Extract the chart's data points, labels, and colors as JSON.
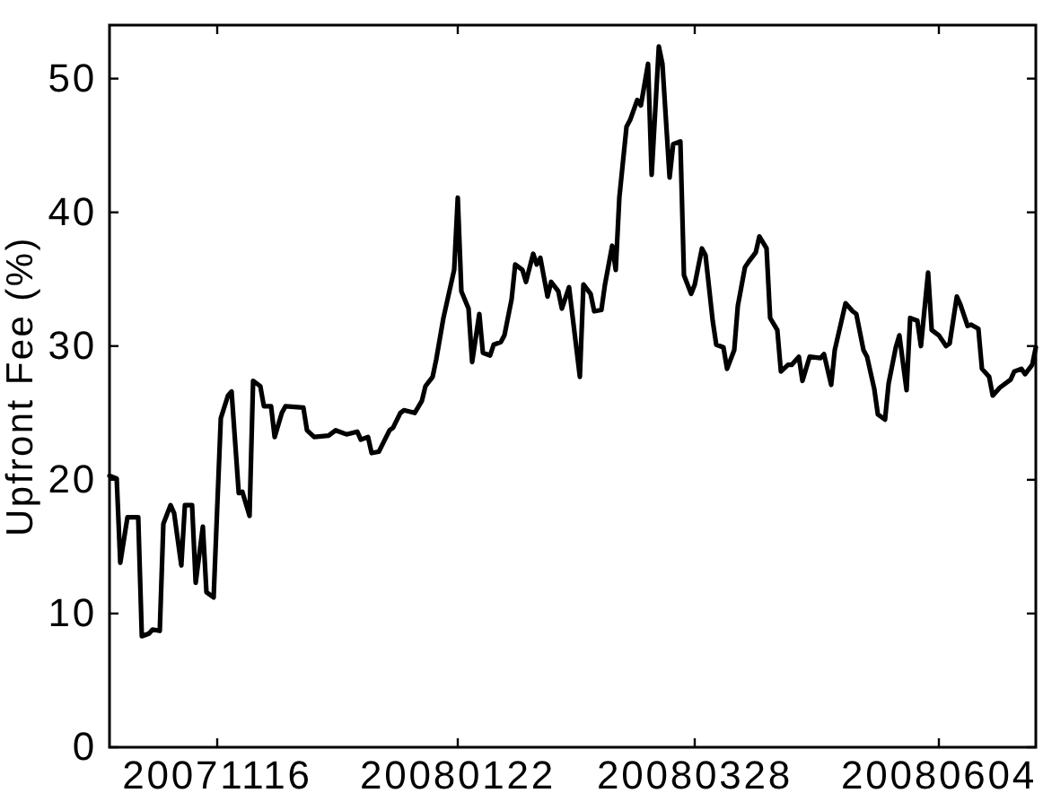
{
  "chart_data": {
    "type": "line",
    "ylabel": "Upfront Fee (%)",
    "x": [
      "2007-10-17",
      "2007-10-19",
      "2007-10-20",
      "2007-10-22",
      "2007-10-25",
      "2007-10-26",
      "2007-10-28",
      "2007-10-29",
      "2007-10-31",
      "2007-11-01",
      "2007-11-03",
      "2007-11-04",
      "2007-11-06",
      "2007-11-07",
      "2007-11-09",
      "2007-11-10",
      "2007-11-12",
      "2007-11-13",
      "2007-11-15",
      "2007-11-17",
      "2007-11-19",
      "2007-11-20",
      "2007-11-22",
      "2007-11-23",
      "2007-11-25",
      "2007-11-26",
      "2007-11-28",
      "2007-11-29",
      "2007-12-01",
      "2007-12-02",
      "2007-12-04",
      "2007-12-05",
      "2007-12-10",
      "2007-12-11",
      "2007-12-13",
      "2007-12-17",
      "2007-12-19",
      "2007-12-22",
      "2007-12-25",
      "2007-12-26",
      "2007-12-28",
      "2007-12-29",
      "2007-12-31",
      "2008-01-03",
      "2008-01-04",
      "2008-01-06",
      "2008-01-07",
      "2008-01-10",
      "2008-01-12",
      "2008-01-13",
      "2008-01-15",
      "2008-01-16",
      "2008-01-18",
      "2008-01-21",
      "2008-01-22",
      "2008-01-23",
      "2008-01-25",
      "2008-01-26",
      "2008-01-28",
      "2008-01-29",
      "2008-01-31",
      "2008-02-01",
      "2008-02-03",
      "2008-02-04",
      "2008-02-06",
      "2008-02-07",
      "2008-02-09",
      "2008-02-10",
      "2008-02-12",
      "2008-02-13",
      "2008-02-14",
      "2008-02-16",
      "2008-02-17",
      "2008-02-19",
      "2008-02-20",
      "2008-02-22",
      "2008-02-25",
      "2008-02-26",
      "2008-02-28",
      "2008-02-29",
      "2008-03-02",
      "2008-03-03",
      "2008-03-05",
      "2008-03-06",
      "2008-03-07",
      "2008-03-09",
      "2008-03-10",
      "2008-03-12",
      "2008-03-13",
      "2008-03-15",
      "2008-03-16",
      "2008-03-18",
      "2008-03-19",
      "2008-03-21",
      "2008-03-22",
      "2008-03-24",
      "2008-03-25",
      "2008-03-27",
      "2008-03-28",
      "2008-03-30",
      "2008-03-31",
      "2008-04-02",
      "2008-04-03",
      "2008-04-05",
      "2008-04-06",
      "2008-04-08",
      "2008-04-09",
      "2008-04-11",
      "2008-04-12",
      "2008-04-14",
      "2008-04-15",
      "2008-04-17",
      "2008-04-18",
      "2008-04-20",
      "2008-04-21",
      "2008-04-23",
      "2008-04-24",
      "2008-04-26",
      "2008-04-27",
      "2008-04-29",
      "2008-05-02",
      "2008-05-03",
      "2008-05-05",
      "2008-05-06",
      "2008-05-09",
      "2008-05-11",
      "2008-05-12",
      "2008-05-14",
      "2008-05-15",
      "2008-05-17",
      "2008-05-18",
      "2008-05-20",
      "2008-05-21",
      "2008-05-23",
      "2008-05-24",
      "2008-05-26",
      "2008-05-27",
      "2008-05-29",
      "2008-05-30",
      "2008-06-01",
      "2008-06-02",
      "2008-06-04",
      "2008-06-06",
      "2008-06-07",
      "2008-06-09",
      "2008-06-10",
      "2008-06-12",
      "2008-06-13",
      "2008-06-15",
      "2008-06-16",
      "2008-06-18",
      "2008-06-19",
      "2008-06-21",
      "2008-06-24",
      "2008-06-25",
      "2008-06-27",
      "2008-06-28",
      "2008-06-30",
      "2008-07-01"
    ],
    "series": [
      {
        "color": "#000000",
        "values": [
          20.3,
          20.1,
          13.8,
          17.2,
          17.2,
          8.3,
          8.5,
          8.8,
          8.7,
          16.7,
          18.1,
          17.5,
          13.6,
          18.1,
          18.1,
          12.3,
          16.5,
          11.6,
          11.2,
          24.6,
          26.3,
          26.6,
          19.0,
          19.1,
          17.3,
          27.4,
          27.0,
          25.5,
          25.5,
          23.2,
          25.0,
          25.5,
          25.4,
          23.7,
          23.2,
          23.3,
          23.7,
          23.4,
          23.6,
          23.0,
          23.2,
          22.0,
          22.1,
          23.7,
          23.9,
          25.0,
          25.2,
          25.0,
          25.9,
          27.0,
          27.7,
          29.0,
          32.1,
          35.7,
          41.1,
          34.1,
          32.8,
          28.8,
          32.4,
          29.5,
          29.3,
          30.1,
          30.3,
          30.8,
          33.5,
          36.1,
          35.7,
          34.8,
          36.9,
          36.1,
          36.6,
          33.7,
          34.8,
          34.1,
          32.8,
          34.4,
          27.7,
          34.6,
          33.9,
          32.6,
          32.7,
          34.6,
          37.5,
          35.7,
          41.1,
          46.4,
          46.9,
          48.4,
          48.0,
          51.1,
          42.8,
          52.4,
          51.1,
          42.6,
          45.1,
          45.3,
          35.3,
          33.9,
          34.6,
          37.3,
          36.8,
          31.9,
          30.1,
          29.9,
          28.3,
          29.7,
          33.0,
          35.9,
          36.3,
          37.0,
          38.2,
          37.3,
          32.1,
          31.2,
          28.1,
          28.6,
          28.6,
          29.2,
          27.4,
          29.2,
          29.1,
          29.4,
          27.1,
          29.7,
          33.2,
          32.6,
          32.4,
          29.7,
          29.2,
          26.8,
          24.9,
          24.5,
          27.2,
          29.9,
          30.8,
          26.7,
          32.1,
          31.9,
          30.0,
          35.5,
          31.2,
          30.8,
          30.0,
          30.2,
          33.7,
          33.1,
          31.5,
          31.6,
          31.3,
          28.3,
          27.7,
          26.3,
          26.9,
          27.5,
          28.1,
          28.3,
          27.9,
          28.6,
          29.9
        ]
      }
    ],
    "xlim": [
      "2007-10-17",
      "2008-07-01"
    ],
    "xticks": [
      {
        "value": "2007-11-16",
        "label": "20071116"
      },
      {
        "value": "2008-01-22",
        "label": "20080122"
      },
      {
        "value": "2008-03-28",
        "label": "20080328"
      },
      {
        "value": "2008-06-04",
        "label": "20080604"
      }
    ],
    "ylim": [
      0,
      54
    ],
    "yticks": [
      0,
      10,
      20,
      30,
      40,
      50
    ],
    "line_style": "solid"
  }
}
